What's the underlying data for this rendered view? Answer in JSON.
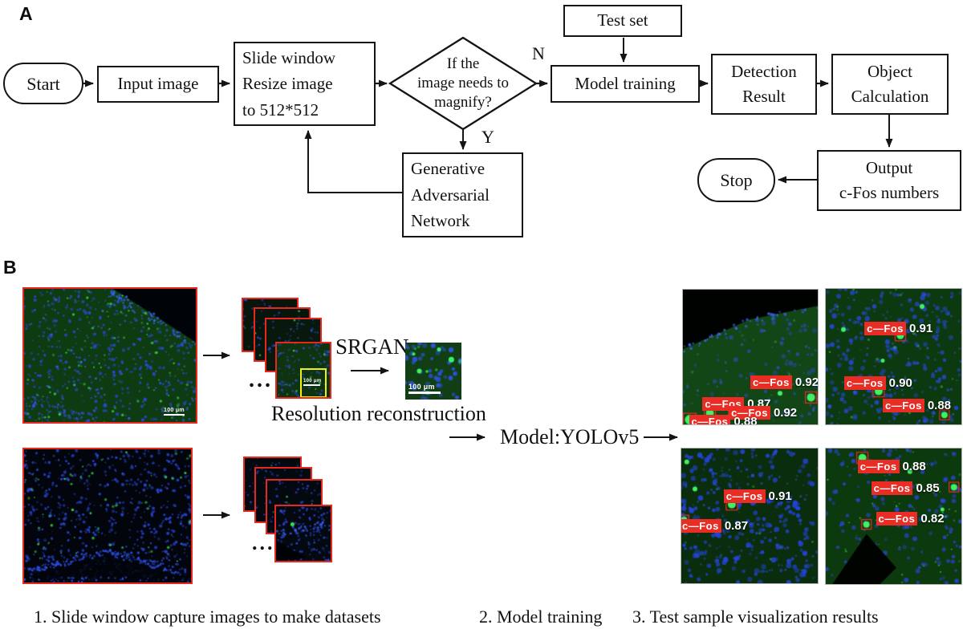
{
  "colors": {
    "image_border_red": "#e8281e",
    "detection_tag_bg": "#ea2d24",
    "detection_text": "#ffffff",
    "crop_box_yellow": "#f0f015",
    "nucleus_blue": "#2b4ce0",
    "cfos_green": "#3ce055",
    "flow_line": "#141414"
  },
  "panel_a": {
    "label": "A",
    "nodes": {
      "start": "Start",
      "input_image": "Input image",
      "slide_window": "Slide  window\nResize  image\nto 512*512",
      "decision": "If the\nimage needs to\nmagnify?",
      "branch_no": "N",
      "branch_yes": "Y",
      "test_set": "Test set",
      "model_training": "Model training",
      "detection_result": "Detection\nResult",
      "object_calculation": "Object\nCalculation",
      "output": "Output\nc-Fos numbers",
      "stop": "Stop",
      "gan": "Generative\nAdversarial\nNetwork"
    }
  },
  "panel_b": {
    "label": "B",
    "srgan": "SRGAN",
    "resolution_caption": "Resolution reconstruction",
    "model_label": "Model:YOLOv5",
    "ellipsis": "...",
    "scale_bars": {
      "large": "100 μm",
      "crop": "100 μm",
      "recon": "100 μm"
    },
    "captions": {
      "step1": "1. Slide window capture images to make datasets",
      "step2": "2. Model training",
      "step3": "3. Test sample visualization results"
    },
    "detections": {
      "tl": [
        {
          "label": "c—Fos",
          "score": "0.92"
        },
        {
          "label": "c—Fos",
          "score": "0.87"
        },
        {
          "label": "c—Fos",
          "score": "0.92"
        },
        {
          "label": "c—Fos",
          "score": "0.88"
        }
      ],
      "tr": [
        {
          "label": "c—Fos",
          "score": "0.91"
        },
        {
          "label": "c—Fos",
          "score": "0.90"
        },
        {
          "label": "c—Fos",
          "score": "0.88"
        }
      ],
      "bl": [
        {
          "label": "c—Fos",
          "score": "0.91"
        },
        {
          "label": "c—Fos",
          "score": "0.87"
        }
      ],
      "br": [
        {
          "label": "c—Fos",
          "score": "0.88"
        },
        {
          "label": "c—Fos",
          "score": "0.85"
        },
        {
          "label": "c—Fos",
          "score": "0.82"
        }
      ]
    }
  }
}
